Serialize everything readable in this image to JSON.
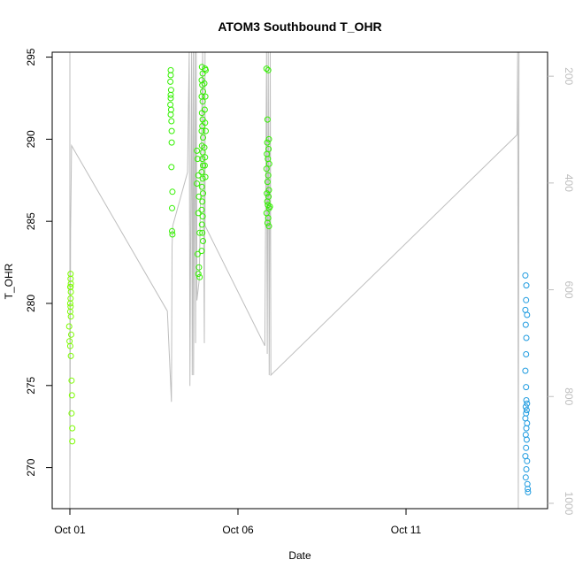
{
  "chart_data": {
    "type": "scatter",
    "title": "ATOM3 Southbound T_OHR",
    "xlabel": "Date",
    "ylabel": "T_OHR",
    "x_ticks": [
      {
        "label": "Oct 01",
        "day": 1
      },
      {
        "label": "Oct 06",
        "day": 6
      },
      {
        "label": "Oct 11",
        "day": 11
      }
    ],
    "ylim": [
      267.5,
      295.3
    ],
    "y_ticks": [
      270,
      275,
      280,
      285,
      290,
      295
    ],
    "y2lim": [
      1010,
      155
    ],
    "y2_ticks": [
      200,
      400,
      600,
      800,
      1000
    ],
    "grid": false,
    "legend": "none",
    "series": [
      {
        "color": "#7CFC00",
        "points": [
          [
            1.02,
            281.8
          ],
          [
            1.02,
            281.5
          ],
          [
            1.03,
            281.2
          ],
          [
            1.02,
            281.0
          ],
          [
            1.03,
            280.7
          ],
          [
            1.02,
            280.3
          ],
          [
            1.01,
            280.0
          ],
          [
            1.02,
            279.8
          ],
          [
            1.01,
            279.5
          ],
          [
            1.03,
            279.2
          ],
          [
            0.98,
            278.6
          ],
          [
            1.04,
            278.1
          ],
          [
            0.99,
            277.7
          ],
          [
            1.01,
            277.4
          ],
          [
            1.03,
            276.8
          ],
          [
            1.05,
            275.3
          ],
          [
            1.06,
            274.4
          ],
          [
            1.05,
            273.3
          ],
          [
            1.07,
            272.4
          ],
          [
            1.07,
            271.6
          ],
          [
            1.01,
            281.0
          ]
        ]
      },
      {
        "color": "#33F000",
        "points": [
          [
            4.0,
            294.2
          ],
          [
            4.0,
            293.9
          ],
          [
            3.99,
            293.5
          ],
          [
            4.01,
            293.0
          ],
          [
            4.0,
            292.7
          ],
          [
            4.0,
            292.5
          ],
          [
            3.99,
            292.1
          ],
          [
            4.01,
            291.8
          ],
          [
            4.0,
            291.5
          ],
          [
            4.02,
            291.1
          ],
          [
            4.03,
            290.5
          ],
          [
            4.03,
            289.8
          ],
          [
            4.02,
            288.3
          ],
          [
            4.05,
            286.8
          ],
          [
            4.04,
            285.8
          ],
          [
            4.04,
            284.4
          ],
          [
            4.05,
            284.2
          ],
          [
            4.78,
            289.3
          ],
          [
            4.8,
            288.8
          ],
          [
            4.82,
            287.8
          ],
          [
            4.78,
            287.3
          ],
          [
            4.84,
            286.5
          ],
          [
            4.82,
            285.5
          ],
          [
            4.86,
            284.3
          ],
          [
            4.8,
            283.0
          ],
          [
            4.84,
            282.2
          ],
          [
            4.82,
            281.8
          ],
          [
            4.86,
            281.6
          ],
          [
            4.93,
            294.4
          ],
          [
            4.95,
            294.0
          ],
          [
            4.92,
            293.6
          ],
          [
            4.94,
            293.3
          ],
          [
            4.96,
            292.9
          ],
          [
            4.92,
            292.6
          ],
          [
            4.95,
            292.3
          ],
          [
            4.93,
            291.6
          ],
          [
            4.95,
            291.2
          ],
          [
            4.94,
            290.8
          ],
          [
            4.92,
            290.5
          ],
          [
            4.96,
            290.1
          ],
          [
            4.93,
            289.6
          ],
          [
            4.95,
            289.2
          ],
          [
            4.94,
            288.8
          ],
          [
            4.96,
            288.4
          ],
          [
            4.92,
            288.0
          ],
          [
            4.95,
            287.6
          ],
          [
            4.93,
            287.1
          ],
          [
            4.96,
            286.7
          ],
          [
            4.94,
            286.2
          ],
          [
            4.92,
            285.7
          ],
          [
            4.95,
            285.3
          ],
          [
            4.93,
            284.8
          ],
          [
            4.94,
            284.3
          ],
          [
            4.96,
            283.8
          ],
          [
            4.92,
            283.2
          ],
          [
            5.02,
            294.3
          ],
          [
            5.04,
            294.2
          ],
          [
            5.0,
            293.4
          ],
          [
            5.03,
            292.6
          ],
          [
            5.01,
            291.8
          ],
          [
            5.02,
            291.0
          ],
          [
            5.04,
            290.5
          ],
          [
            5.0,
            289.5
          ],
          [
            5.02,
            288.9
          ],
          [
            5.01,
            288.4
          ],
          [
            5.03,
            287.7
          ],
          [
            6.85,
            294.3
          ],
          [
            6.9,
            294.2
          ],
          [
            6.88,
            291.2
          ],
          [
            6.92,
            290.0
          ],
          [
            6.87,
            289.8
          ],
          [
            6.91,
            289.4
          ],
          [
            6.86,
            289.1
          ],
          [
            6.89,
            288.8
          ],
          [
            6.93,
            288.5
          ],
          [
            6.85,
            288.2
          ],
          [
            6.9,
            287.8
          ],
          [
            6.88,
            287.4
          ],
          [
            6.92,
            286.9
          ],
          [
            6.86,
            286.7
          ],
          [
            6.91,
            286.5
          ],
          [
            6.87,
            286.2
          ],
          [
            6.89,
            286.0
          ],
          [
            6.93,
            285.8
          ],
          [
            6.85,
            285.5
          ],
          [
            6.9,
            285.2
          ],
          [
            6.88,
            284.9
          ],
          [
            6.92,
            284.7
          ],
          [
            6.95,
            285.9
          ]
        ]
      },
      {
        "color": "#1E9BE0",
        "points": [
          [
            14.55,
            281.7
          ],
          [
            14.58,
            281.1
          ],
          [
            14.57,
            280.2
          ],
          [
            14.55,
            279.6
          ],
          [
            14.6,
            279.3
          ],
          [
            14.56,
            278.7
          ],
          [
            14.58,
            277.9
          ],
          [
            14.57,
            276.9
          ],
          [
            14.55,
            275.9
          ],
          [
            14.57,
            274.9
          ],
          [
            14.58,
            274.1
          ],
          [
            14.6,
            273.9
          ],
          [
            14.56,
            273.7
          ],
          [
            14.59,
            273.5
          ],
          [
            14.57,
            273.3
          ],
          [
            14.55,
            273.0
          ],
          [
            14.6,
            272.7
          ],
          [
            14.58,
            272.4
          ],
          [
            14.56,
            272.0
          ],
          [
            14.59,
            271.7
          ],
          [
            14.57,
            271.2
          ],
          [
            14.55,
            270.7
          ],
          [
            14.6,
            270.4
          ],
          [
            14.58,
            269.9
          ],
          [
            14.56,
            269.4
          ],
          [
            14.61,
            269.0
          ],
          [
            14.62,
            268.7
          ],
          [
            14.63,
            268.5
          ]
        ]
      }
    ],
    "overlay_line": {
      "color": "#bebebe",
      "axis": "right",
      "points": [
        [
          1.0,
          155
        ],
        [
          1.0,
          1010
        ],
        [
          1.02,
          490
        ],
        [
          1.05,
          330
        ],
        [
          3.9,
          640
        ],
        [
          4.02,
          810
        ],
        [
          4.04,
          520
        ],
        [
          4.06,
          480
        ],
        [
          4.5,
          380
        ],
        [
          4.55,
          155
        ],
        [
          4.57,
          780
        ],
        [
          4.62,
          155
        ],
        [
          4.64,
          760
        ],
        [
          4.67,
          155
        ],
        [
          4.68,
          760
        ],
        [
          4.72,
          155
        ],
        [
          4.74,
          700
        ],
        [
          4.76,
          155
        ],
        [
          4.78,
          620
        ],
        [
          4.85,
          580
        ],
        [
          4.95,
          155
        ],
        [
          5.0,
          700
        ],
        [
          5.02,
          155
        ],
        [
          5.02,
          480
        ],
        [
          6.8,
          705
        ],
        [
          6.85,
          155
        ],
        [
          6.87,
          720
        ],
        [
          6.9,
          155
        ],
        [
          6.93,
          760
        ],
        [
          6.96,
          155
        ],
        [
          6.98,
          760
        ],
        [
          14.3,
          310
        ],
        [
          14.32,
          155
        ],
        [
          14.34,
          1010
        ],
        [
          14.36,
          155
        ]
      ]
    }
  }
}
